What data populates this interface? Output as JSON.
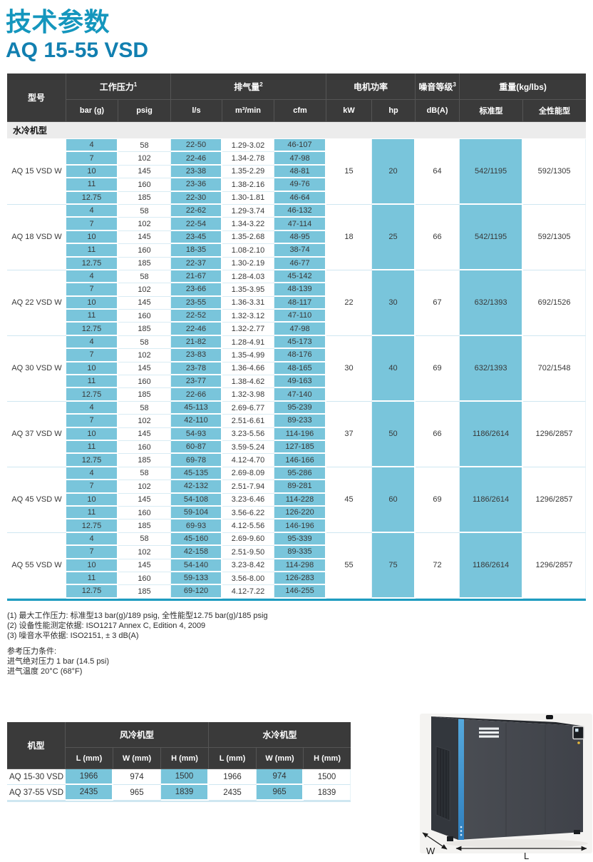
{
  "page": {
    "title": "技术参数",
    "subtitle": "AQ 15-55 VSD"
  },
  "colors": {
    "accent_teal": "#1496bd",
    "header_dark": "#3a3a3a",
    "cell_blue": "#79c5db",
    "table_underline": "#1d9cc0",
    "section_gray": "#ececec"
  },
  "main_table": {
    "header": {
      "model_col": "型号",
      "groups": [
        {
          "label": "工作压力",
          "sup": "1"
        },
        {
          "label": "排气量",
          "sup": "2"
        },
        {
          "label": "电机功率",
          "sup": ""
        },
        {
          "label": "噪音等级",
          "sup": "3"
        },
        {
          "label": "重量(kg/lbs)",
          "sup": ""
        }
      ],
      "units": [
        "bar (g)",
        "psig",
        "l/s",
        "m³/min",
        "cfm",
        "kW",
        "hp",
        "dB(A)",
        "标准型",
        "全性能型"
      ]
    },
    "section_label": "水冷机型",
    "models": [
      {
        "name": "AQ 15 VSD W",
        "kw": "15",
        "hp": "20",
        "db": "64",
        "standard": "542/1195",
        "full": "592/1305",
        "rows": [
          [
            "4",
            "58",
            "22-50",
            "1.29-3.02",
            "46-107"
          ],
          [
            "7",
            "102",
            "22-46",
            "1.34-2.78",
            "47-98"
          ],
          [
            "10",
            "145",
            "23-38",
            "1.35-2.29",
            "48-81"
          ],
          [
            "11",
            "160",
            "23-36",
            "1.38-2.16",
            "49-76"
          ],
          [
            "12.75",
            "185",
            "22-30",
            "1.30-1.81",
            "46-64"
          ]
        ]
      },
      {
        "name": "AQ 18 VSD W",
        "kw": "18",
        "hp": "25",
        "db": "66",
        "standard": "542/1195",
        "full": "592/1305",
        "rows": [
          [
            "4",
            "58",
            "22-62",
            "1.29-3.74",
            "46-132"
          ],
          [
            "7",
            "102",
            "22-54",
            "1.34-3.22",
            "47-114"
          ],
          [
            "10",
            "145",
            "23-45",
            "1.35-2.68",
            "48-95"
          ],
          [
            "11",
            "160",
            "18-35",
            "1.08-2.10",
            "38-74"
          ],
          [
            "12.75",
            "185",
            "22-37",
            "1.30-2.19",
            "46-77"
          ]
        ]
      },
      {
        "name": "AQ 22 VSD W",
        "kw": "22",
        "hp": "30",
        "db": "67",
        "standard": "632/1393",
        "full": "692/1526",
        "rows": [
          [
            "4",
            "58",
            "21-67",
            "1.28-4.03",
            "45-142"
          ],
          [
            "7",
            "102",
            "23-66",
            "1.35-3.95",
            "48-139"
          ],
          [
            "10",
            "145",
            "23-55",
            "1.36-3.31",
            "48-117"
          ],
          [
            "11",
            "160",
            "22-52",
            "1.32-3.12",
            "47-110"
          ],
          [
            "12.75",
            "185",
            "22-46",
            "1.32-2.77",
            "47-98"
          ]
        ]
      },
      {
        "name": "AQ 30 VSD W",
        "kw": "30",
        "hp": "40",
        "db": "69",
        "standard": "632/1393",
        "full": "702/1548",
        "rows": [
          [
            "4",
            "58",
            "21-82",
            "1.28-4.91",
            "45-173"
          ],
          [
            "7",
            "102",
            "23-83",
            "1.35-4.99",
            "48-176"
          ],
          [
            "10",
            "145",
            "23-78",
            "1.36-4.66",
            "48-165"
          ],
          [
            "11",
            "160",
            "23-77",
            "1.38-4.62",
            "49-163"
          ],
          [
            "12.75",
            "185",
            "22-66",
            "1.32-3.98",
            "47-140"
          ]
        ]
      },
      {
        "name": "AQ 37 VSD W",
        "kw": "37",
        "hp": "50",
        "db": "66",
        "standard": "1186/2614",
        "full": "1296/2857",
        "rows": [
          [
            "4",
            "58",
            "45-113",
            "2.69-6.77",
            "95-239"
          ],
          [
            "7",
            "102",
            "42-110",
            "2.51-6.61",
            "89-233"
          ],
          [
            "10",
            "145",
            "54-93",
            "3.23-5.56",
            "114-196"
          ],
          [
            "11",
            "160",
            "60-87",
            "3.59-5.24",
            "127-185"
          ],
          [
            "12.75",
            "185",
            "69-78",
            "4.12-4.70",
            "146-166"
          ]
        ]
      },
      {
        "name": "AQ 45 VSD W",
        "kw": "45",
        "hp": "60",
        "db": "69",
        "standard": "1186/2614",
        "full": "1296/2857",
        "rows": [
          [
            "4",
            "58",
            "45-135",
            "2.69-8.09",
            "95-286"
          ],
          [
            "7",
            "102",
            "42-132",
            "2.51-7.94",
            "89-281"
          ],
          [
            "10",
            "145",
            "54-108",
            "3.23-6.46",
            "114-228"
          ],
          [
            "11",
            "160",
            "59-104",
            "3.56-6.22",
            "126-220"
          ],
          [
            "12.75",
            "185",
            "69-93",
            "4.12-5.56",
            "146-196"
          ]
        ]
      },
      {
        "name": "AQ 55 VSD W",
        "kw": "55",
        "hp": "75",
        "db": "72",
        "standard": "1186/2614",
        "full": "1296/2857",
        "rows": [
          [
            "4",
            "58",
            "45-160",
            "2.69-9.60",
            "95-339"
          ],
          [
            "7",
            "102",
            "42-158",
            "2.51-9.50",
            "89-335"
          ],
          [
            "10",
            "145",
            "54-140",
            "3.23-8.42",
            "114-298"
          ],
          [
            "11",
            "160",
            "59-133",
            "3.56-8.00",
            "126-283"
          ],
          [
            "12.75",
            "185",
            "69-120",
            "4.12-7.22",
            "146-255"
          ]
        ]
      }
    ]
  },
  "footnotes": [
    "(1) 最大工作压力: 标准型13 bar(g)/189 psig, 全性能型12.75 bar(g)/185 psig",
    "(2) 设备性能测定依据: ISO1217 Annex C, Edition 4, 2009",
    "(3) 噪音水平依据: ISO2151, ± 3 dB(A)"
  ],
  "reference": {
    "title": "参考压力条件:",
    "line1": "进气绝对压力 1 bar (14.5 psi)",
    "line2": "进气温度 20°C (68°F)"
  },
  "dim_table": {
    "model_col": "机型",
    "groups": [
      {
        "label": "风冷机型"
      },
      {
        "label": "水冷机型"
      }
    ],
    "units": [
      "L (mm)",
      "W (mm)",
      "H (mm)",
      "L (mm)",
      "W (mm)",
      "H (mm)"
    ],
    "rows": [
      {
        "name": "AQ 15-30 VSD",
        "values": [
          "1966",
          "974",
          "1500",
          "1966",
          "974",
          "1500"
        ]
      },
      {
        "name": "AQ 37-55 VSD",
        "values": [
          "2435",
          "965",
          "1839",
          "2435",
          "965",
          "1839"
        ]
      }
    ]
  },
  "figure": {
    "width_label": "W",
    "length_label": "L"
  }
}
